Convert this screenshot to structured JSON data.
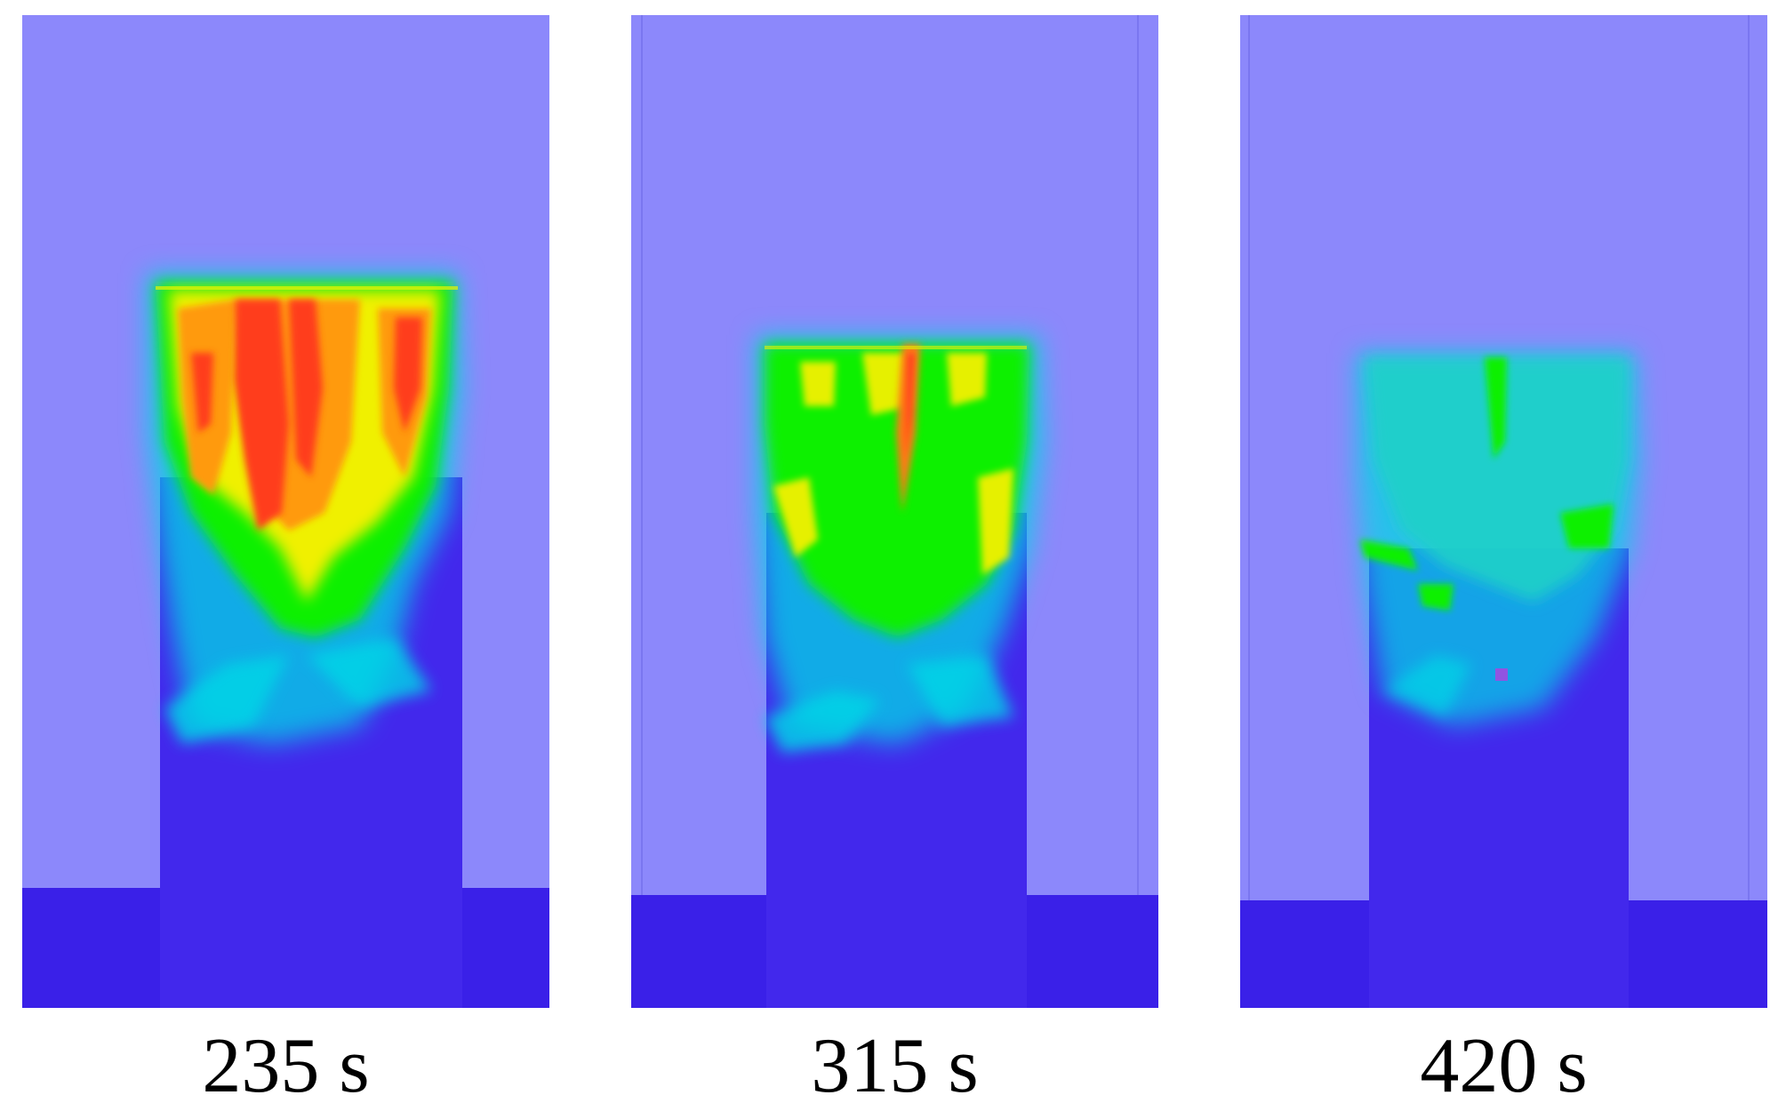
{
  "colors": {
    "background_gas": "#8c88fb",
    "floor": "#3a20e8",
    "column": "#4228ec",
    "cool": "#00d7e6",
    "mid": "#00f000",
    "warm": "#f2f000",
    "hot": "#ff3c1a"
  },
  "frames": [
    {
      "label": "235 s",
      "peak_level": "hot"
    },
    {
      "label": "315 s",
      "peak_level": "warm"
    },
    {
      "label": "420 s",
      "peak_level": "mid"
    }
  ]
}
